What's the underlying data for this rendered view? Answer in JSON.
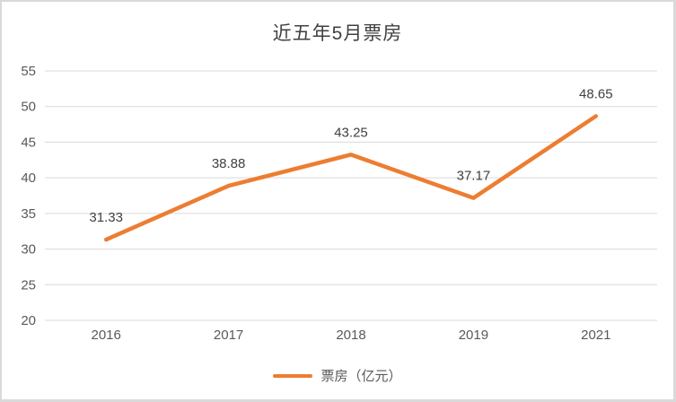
{
  "chart_data": {
    "type": "line",
    "title": "近五年5月票房",
    "categories": [
      "2016",
      "2017",
      "2018",
      "2019",
      "2021"
    ],
    "series": [
      {
        "name": "票房（亿元）",
        "values": [
          31.33,
          38.88,
          43.25,
          37.17,
          48.65
        ],
        "data_labels": [
          "31.33",
          "38.88",
          "43.25",
          "37.17",
          "48.65"
        ],
        "color": "#ED7D31"
      }
    ],
    "ylim": [
      20,
      55
    ],
    "ytick_step": 5,
    "ytick_labels": [
      "20",
      "25",
      "30",
      "35",
      "40",
      "45",
      "50",
      "55"
    ],
    "xlabel": "",
    "ylabel": "",
    "grid": true,
    "legend_position": "bottom"
  },
  "colors": {
    "series_orange": "#ED7D31",
    "gridline": "#D9D9D9",
    "axis_text": "#595959",
    "label_text": "#404040",
    "title_text": "#404040",
    "frame_border": "#D9D9D9",
    "background": "#FFFFFF"
  }
}
